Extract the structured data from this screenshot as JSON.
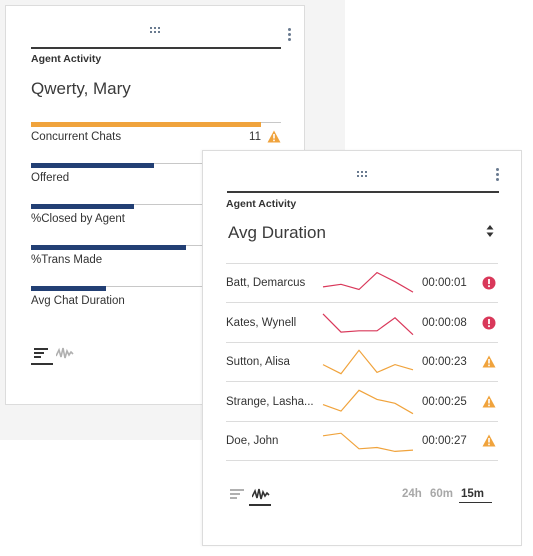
{
  "colors": {
    "primary_bar": "#223f74",
    "orange_bar": "#f0a33c",
    "spark_red": "#d9385a",
    "spark_orange": "#f0a33c",
    "error_icon": "#d9385a",
    "warning_icon": "#f0a33c"
  },
  "card_left": {
    "title": "Agent Activity",
    "agent_name": "Qwerty, Mary",
    "metrics": [
      {
        "label": "Concurrent Chats",
        "value": "11",
        "fill": 0.92,
        "color": "orange",
        "icon": "warning-icon"
      },
      {
        "label": "Offered",
        "value": "",
        "fill": 0.49,
        "color": "primary"
      },
      {
        "label": "%Closed by Agent",
        "value": "",
        "fill": 0.41,
        "color": "primary"
      },
      {
        "label": "%Trans Made",
        "value": "",
        "fill": 0.62,
        "color": "primary"
      },
      {
        "label": "Avg Chat Duration",
        "value": "",
        "fill": 0.3,
        "color": "primary"
      }
    ],
    "view_toggle": {
      "active": "bars"
    }
  },
  "card_right": {
    "title": "Agent Activity",
    "metric_name": "Avg Duration",
    "agents": [
      {
        "name": "Batt, Demarcus",
        "duration": "00:00:01",
        "status": "error",
        "color": "red",
        "trend": [
          0.35,
          0.45,
          0.25,
          0.9,
          0.55,
          0.15
        ]
      },
      {
        "name": "Kates, Wynell",
        "duration": "00:00:08",
        "status": "error",
        "color": "red",
        "trend": [
          0.85,
          0.15,
          0.2,
          0.2,
          0.7,
          0.05
        ]
      },
      {
        "name": "Sutton, Alisa",
        "duration": "00:00:23",
        "status": "warning",
        "color": "orange",
        "trend": [
          0.4,
          0.05,
          0.95,
          0.1,
          0.4,
          0.2
        ]
      },
      {
        "name": "Strange, Lasha...",
        "duration": "00:00:25",
        "status": "warning",
        "color": "orange",
        "trend": [
          0.4,
          0.15,
          0.95,
          0.6,
          0.45,
          0.05
        ]
      },
      {
        "name": "Doe, John",
        "duration": "00:00:27",
        "status": "warning",
        "color": "orange",
        "trend": [
          0.7,
          0.8,
          0.2,
          0.25,
          0.1,
          0.15
        ]
      }
    ],
    "view_toggle": {
      "active": "sparkline"
    },
    "time_range": {
      "options": [
        "24h",
        "60m",
        "15m"
      ],
      "selected": "15m"
    }
  }
}
